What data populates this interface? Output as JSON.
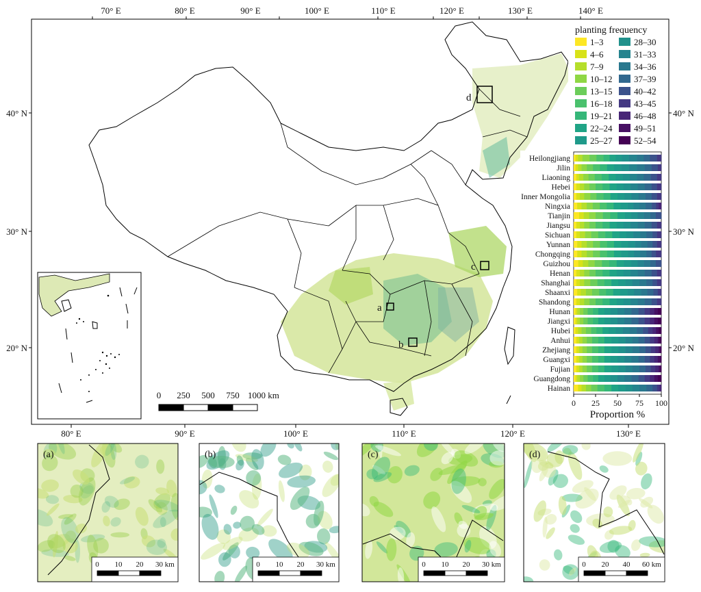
{
  "main_map": {
    "top_lon_labels": [
      "70° E",
      "80° E",
      "90° E",
      "100° E",
      "110° E",
      "120° E",
      "130° E",
      "140° E"
    ],
    "bottom_lon_labels": [
      "80° E",
      "90° E",
      "100° E",
      "110° E",
      "120° E",
      "130° E"
    ],
    "lat_labels": [
      "40° N",
      "30° N",
      "20° N"
    ],
    "box_labels": [
      "a",
      "b",
      "c",
      "d"
    ],
    "scale_bar": {
      "ticks": [
        "0",
        "250",
        "500",
        "750",
        "1000 km"
      ]
    }
  },
  "legend": {
    "title": "planting frequency",
    "items": [
      {
        "label": "1–3",
        "color": "#fde725"
      },
      {
        "label": "4–6",
        "color": "#d8e219"
      },
      {
        "label": "7–9",
        "color": "#b5de2b"
      },
      {
        "label": "10–12",
        "color": "#8fd744"
      },
      {
        "label": "13–15",
        "color": "#6ccd5a"
      },
      {
        "label": "16–18",
        "color": "#4ac16d"
      },
      {
        "label": "19–21",
        "color": "#35b779"
      },
      {
        "label": "22–24",
        "color": "#20a486"
      },
      {
        "label": "25–27",
        "color": "#1f9a8a"
      },
      {
        "label": "28–30",
        "color": "#21918c"
      },
      {
        "label": "31–33",
        "color": "#25848e"
      },
      {
        "label": "34–36",
        "color": "#2a788e"
      },
      {
        "label": "37–39",
        "color": "#31688e"
      },
      {
        "label": "40–42",
        "color": "#3b528b"
      },
      {
        "label": "43–45",
        "color": "#443983"
      },
      {
        "label": "46–48",
        "color": "#482677"
      },
      {
        "label": "49–51",
        "color": "#471063"
      },
      {
        "label": "52–54",
        "color": "#440154"
      }
    ]
  },
  "chart_data": {
    "type": "bar",
    "orientation": "horizontal",
    "stacked": true,
    "xlabel": "Proportion %",
    "xlim": [
      0,
      100
    ],
    "x_ticks": [
      "0",
      "25",
      "50",
      "75",
      "100"
    ],
    "categories": [
      "Heilongjiang",
      "Jilin",
      "Liaoning",
      "Hebei",
      "Inner Mongolia",
      "Ningxia",
      "Tianjin",
      "Jiangsu",
      "Sichuan",
      "Yunnan",
      "Chongqing",
      "Guizhou",
      "Henan",
      "Shanghai",
      "Shaanxi",
      "Shandong",
      "Hunan",
      "Jiangxi",
      "Hubei",
      "Anhui",
      "Zhejiang",
      "Guangxi",
      "Fujian",
      "Guangdong",
      "Hainan"
    ],
    "segments_by_category": [
      [
        2,
        3,
        5,
        8,
        8,
        8,
        7,
        7,
        7,
        8,
        9,
        8,
        7,
        8,
        5
      ],
      [
        2,
        3,
        4,
        6,
        7,
        8,
        8,
        8,
        8,
        9,
        9,
        9,
        8,
        7,
        4
      ],
      [
        3,
        3,
        5,
        6,
        7,
        8,
        8,
        8,
        8,
        8,
        8,
        8,
        8,
        7,
        5
      ],
      [
        3,
        4,
        5,
        6,
        7,
        8,
        8,
        8,
        8,
        8,
        8,
        8,
        8,
        6,
        5
      ],
      [
        3,
        4,
        5,
        7,
        7,
        8,
        8,
        8,
        8,
        8,
        8,
        8,
        7,
        6,
        5
      ],
      [
        4,
        5,
        6,
        7,
        8,
        8,
        8,
        8,
        8,
        7,
        7,
        7,
        7,
        5,
        3,
        3
      ],
      [
        6,
        5,
        6,
        7,
        8,
        8,
        8,
        8,
        7,
        7,
        7,
        7,
        6,
        6
      ],
      [
        3,
        4,
        5,
        6,
        7,
        8,
        8,
        8,
        8,
        8,
        8,
        8,
        8,
        6,
        5
      ],
      [
        3,
        4,
        6,
        7,
        8,
        8,
        8,
        8,
        8,
        8,
        8,
        7,
        7,
        5,
        5
      ],
      [
        4,
        5,
        6,
        7,
        8,
        8,
        8,
        8,
        8,
        8,
        7,
        7,
        6,
        5,
        5
      ],
      [
        4,
        5,
        6,
        7,
        8,
        8,
        8,
        8,
        8,
        7,
        7,
        7,
        6,
        5,
        6
      ],
      [
        5,
        5,
        6,
        7,
        8,
        8,
        8,
        8,
        8,
        7,
        7,
        7,
        6,
        6
      ],
      [
        3,
        4,
        5,
        6,
        7,
        8,
        8,
        8,
        8,
        8,
        8,
        8,
        8,
        6,
        5
      ],
      [
        3,
        4,
        5,
        7,
        8,
        8,
        8,
        8,
        8,
        8,
        8,
        8,
        7,
        5,
        5
      ],
      [
        4,
        4,
        6,
        7,
        8,
        8,
        8,
        8,
        8,
        8,
        8,
        7,
        7,
        5,
        4
      ],
      [
        3,
        4,
        5,
        6,
        7,
        8,
        8,
        8,
        8,
        8,
        8,
        8,
        8,
        6,
        5
      ],
      [
        2,
        2,
        3,
        4,
        5,
        6,
        6,
        7,
        7,
        8,
        8,
        8,
        8,
        7,
        6,
        5,
        4,
        4
      ],
      [
        2,
        2,
        3,
        4,
        5,
        6,
        6,
        7,
        7,
        8,
        8,
        8,
        8,
        7,
        6,
        5,
        4,
        4
      ],
      [
        2,
        3,
        4,
        5,
        6,
        6,
        7,
        7,
        8,
        8,
        8,
        8,
        7,
        6,
        5,
        4,
        3,
        3
      ],
      [
        3,
        3,
        4,
        5,
        6,
        7,
        7,
        8,
        8,
        8,
        8,
        7,
        7,
        6,
        5,
        4,
        2,
        2
      ],
      [
        3,
        3,
        4,
        5,
        6,
        7,
        7,
        8,
        8,
        8,
        8,
        8,
        7,
        6,
        5,
        4,
        2,
        1
      ],
      [
        3,
        3,
        4,
        5,
        6,
        7,
        7,
        7,
        8,
        8,
        8,
        8,
        7,
        6,
        5,
        4,
        3,
        1
      ],
      [
        3,
        3,
        4,
        5,
        6,
        7,
        7,
        8,
        8,
        8,
        8,
        8,
        7,
        6,
        5,
        4,
        2,
        1
      ],
      [
        2,
        2,
        3,
        4,
        5,
        6,
        6,
        7,
        7,
        8,
        8,
        8,
        8,
        7,
        6,
        5,
        4,
        4
      ],
      [
        5,
        4,
        5,
        6,
        7,
        8,
        8,
        8,
        8,
        8,
        8,
        8,
        7,
        5,
        3,
        2
      ]
    ]
  },
  "insets": [
    {
      "label": "(a)",
      "scale_ticks": [
        "0",
        "10",
        "20",
        "30 km"
      ]
    },
    {
      "label": "(b)",
      "scale_ticks": [
        "0",
        "10",
        "20",
        "30 km"
      ]
    },
    {
      "label": "(c)",
      "scale_ticks": [
        "0",
        "10",
        "20",
        "30 km"
      ]
    },
    {
      "label": "(d)",
      "scale_ticks": [
        "0",
        "20",
        "40",
        "60 km"
      ]
    }
  ]
}
